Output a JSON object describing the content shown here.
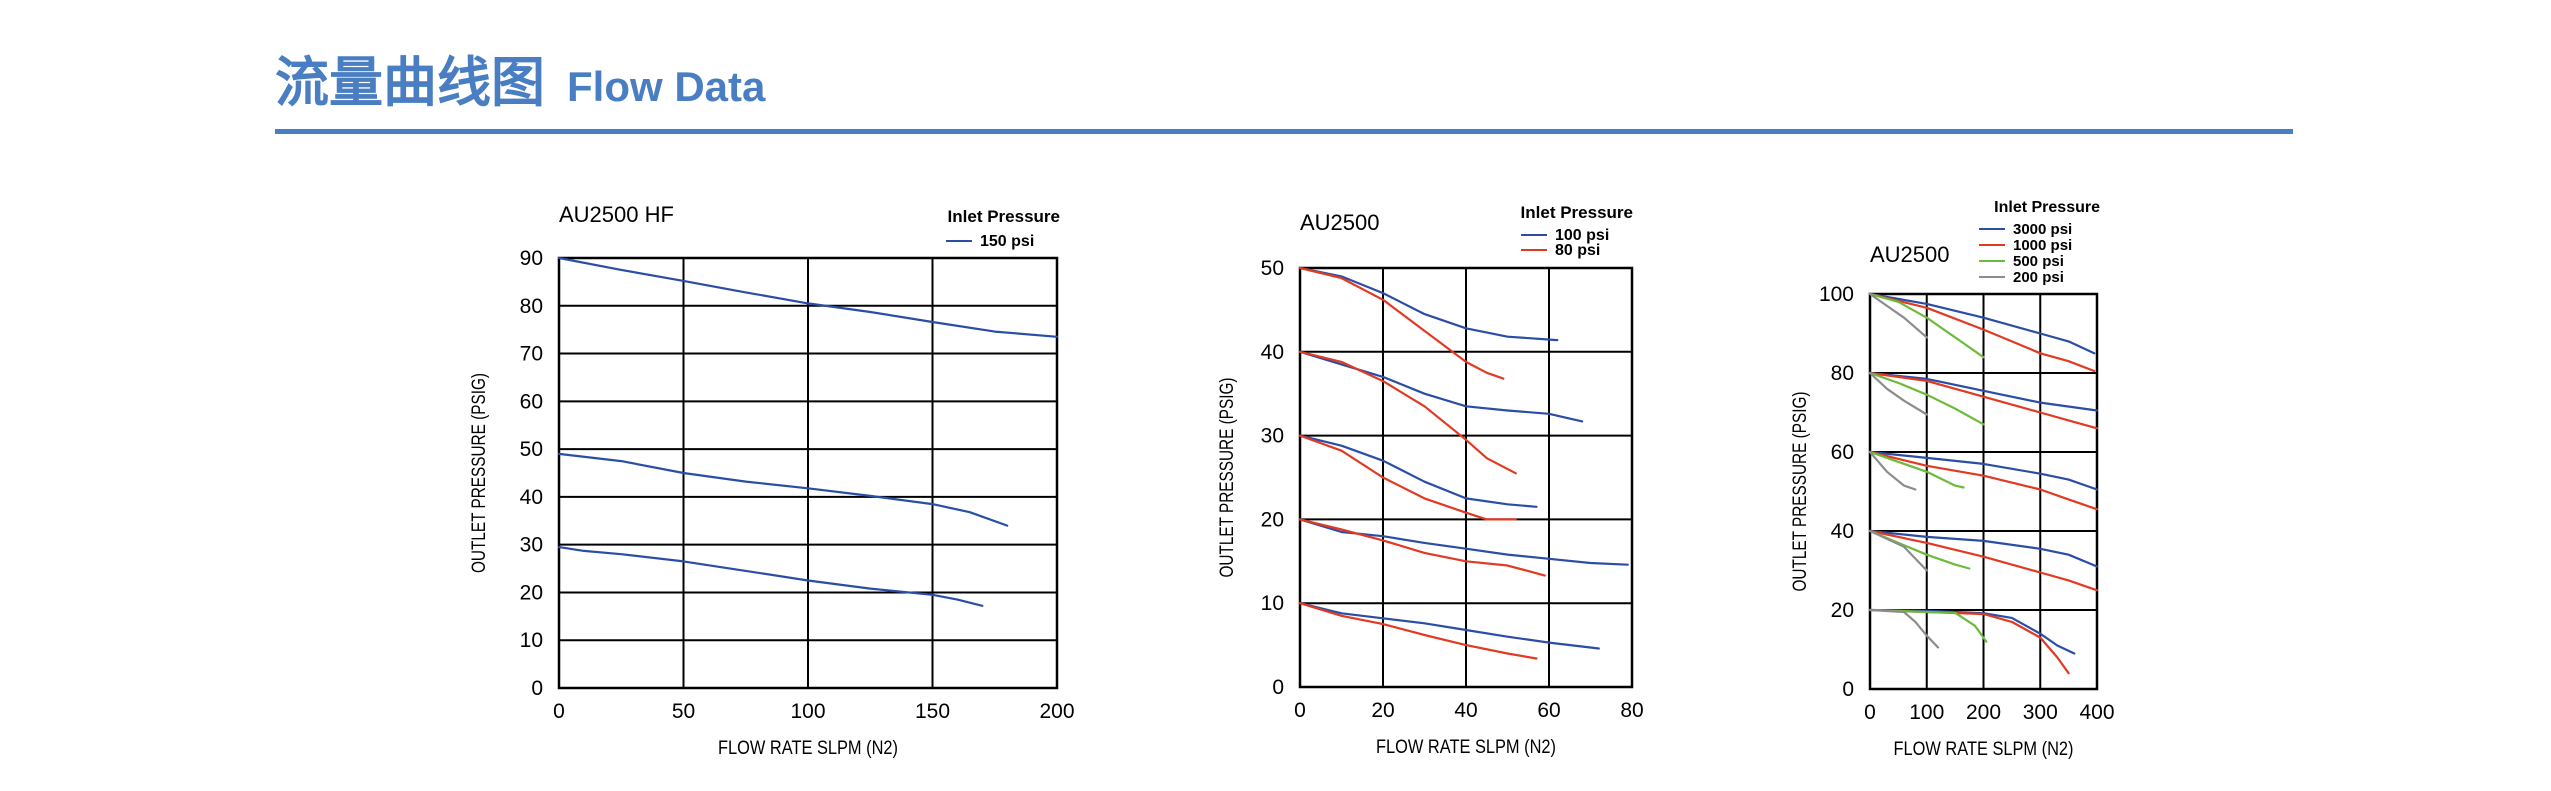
{
  "header": {
    "title_cn": "流量曲线图",
    "title_en": "Flow Data"
  },
  "colors": {
    "accent": "#4a7ec2",
    "blue": "#2a4ea6",
    "red": "#e23a22",
    "green": "#6cbb3c",
    "gray": "#8c8c8c"
  },
  "chart_data": [
    {
      "type": "line",
      "title": "AU2500  HF",
      "xlabel": "FLOW RATE SLPM (N2)",
      "ylabel": "OUTLET PRESSURE (PSIG)",
      "xlim": [
        0,
        200
      ],
      "ylim": [
        0,
        90
      ],
      "xticks": [
        0,
        50,
        100,
        150,
        200
      ],
      "yticks": [
        0,
        10,
        20,
        30,
        40,
        50,
        60,
        70,
        80,
        90
      ],
      "grid": true,
      "legend": {
        "title": "Inlet Pressure",
        "position": "top-right"
      },
      "series": [
        {
          "name": "150  psi",
          "color": "#2a4ea6",
          "curves": [
            [
              [
                0,
                90
              ],
              [
                25,
                87.5
              ],
              [
                50,
                85.2
              ],
              [
                75,
                82.8
              ],
              [
                100,
                80.5
              ],
              [
                125,
                78.7
              ],
              [
                150,
                76.6
              ],
              [
                175,
                74.6
              ],
              [
                200,
                73.5
              ]
            ],
            [
              [
                0,
                49
              ],
              [
                25,
                47.5
              ],
              [
                50,
                45
              ],
              [
                75,
                43.2
              ],
              [
                100,
                41.8
              ],
              [
                125,
                40.2
              ],
              [
                150,
                38.5
              ],
              [
                165,
                36.8
              ],
              [
                180,
                34
              ]
            ],
            [
              [
                0,
                29.5
              ],
              [
                10,
                28.7
              ],
              [
                25,
                28
              ],
              [
                50,
                26.5
              ],
              [
                75,
                24.5
              ],
              [
                100,
                22.5
              ],
              [
                125,
                20.8
              ],
              [
                150,
                19.5
              ],
              [
                160,
                18.5
              ],
              [
                170,
                17.2
              ]
            ]
          ]
        }
      ]
    },
    {
      "type": "line",
      "title": "AU2500",
      "xlabel": "FLOW RATE SLPM (N2)",
      "ylabel": "OUTLET PRESSURE (PSIG)",
      "xlim": [
        0,
        80
      ],
      "ylim": [
        0,
        50
      ],
      "xticks": [
        0,
        20,
        40,
        60,
        80
      ],
      "yticks": [
        0,
        10,
        20,
        30,
        40,
        50
      ],
      "grid": true,
      "legend": {
        "title": "Inlet Pressure",
        "position": "top-right"
      },
      "series": [
        {
          "name": "100  psi",
          "color": "#2a4ea6",
          "curves": [
            [
              [
                0,
                50
              ],
              [
                10,
                49
              ],
              [
                20,
                47
              ],
              [
                30,
                44.5
              ],
              [
                40,
                42.8
              ],
              [
                50,
                41.8
              ],
              [
                62,
                41.4
              ]
            ],
            [
              [
                0,
                40
              ],
              [
                10,
                38.5
              ],
              [
                20,
                37
              ],
              [
                30,
                35
              ],
              [
                40,
                33.5
              ],
              [
                50,
                33
              ],
              [
                60,
                32.6
              ],
              [
                68,
                31.7
              ]
            ],
            [
              [
                0,
                30
              ],
              [
                10,
                28.8
              ],
              [
                20,
                27
              ],
              [
                30,
                24.5
              ],
              [
                40,
                22.5
              ],
              [
                50,
                21.8
              ],
              [
                57,
                21.5
              ]
            ],
            [
              [
                0,
                20
              ],
              [
                10,
                18.5
              ],
              [
                20,
                18
              ],
              [
                30,
                17.2
              ],
              [
                40,
                16.5
              ],
              [
                50,
                15.8
              ],
              [
                60,
                15.3
              ],
              [
                70,
                14.8
              ],
              [
                79,
                14.6
              ]
            ],
            [
              [
                0,
                10
              ],
              [
                10,
                8.8
              ],
              [
                20,
                8.2
              ],
              [
                30,
                7.6
              ],
              [
                40,
                6.8
              ],
              [
                50,
                6
              ],
              [
                60,
                5.3
              ],
              [
                72,
                4.6
              ]
            ]
          ]
        },
        {
          "name": "80  psi",
          "color": "#e23a22",
          "curves": [
            [
              [
                0,
                50
              ],
              [
                10,
                48.8
              ],
              [
                20,
                46.2
              ],
              [
                30,
                42.5
              ],
              [
                40,
                38.8
              ],
              [
                45,
                37.5
              ],
              [
                49,
                36.8
              ]
            ],
            [
              [
                0,
                40
              ],
              [
                10,
                38.8
              ],
              [
                20,
                36.5
              ],
              [
                30,
                33.5
              ],
              [
                40,
                29.5
              ],
              [
                45,
                27.3
              ],
              [
                52,
                25.5
              ]
            ],
            [
              [
                0,
                30
              ],
              [
                10,
                28.2
              ],
              [
                20,
                25
              ],
              [
                30,
                22.5
              ],
              [
                40,
                20.8
              ],
              [
                45,
                20
              ],
              [
                52,
                20
              ]
            ],
            [
              [
                0,
                20
              ],
              [
                10,
                18.8
              ],
              [
                20,
                17.5
              ],
              [
                30,
                16
              ],
              [
                40,
                15
              ],
              [
                50,
                14.5
              ],
              [
                59,
                13.3
              ]
            ],
            [
              [
                0,
                10
              ],
              [
                10,
                8.5
              ],
              [
                20,
                7.5
              ],
              [
                30,
                6.2
              ],
              [
                40,
                5
              ],
              [
                50,
                4
              ],
              [
                57,
                3.4
              ]
            ]
          ]
        }
      ]
    },
    {
      "type": "line",
      "title": "AU2500",
      "xlabel": "FLOW RATE SLPM (N2)",
      "ylabel": "OUTLET PRESSURE (PSIG)",
      "xlim": [
        0,
        400
      ],
      "ylim": [
        0,
        100
      ],
      "xticks": [
        0,
        100,
        200,
        300,
        400
      ],
      "yticks": [
        0,
        20,
        40,
        60,
        80,
        100
      ],
      "grid": true,
      "legend": {
        "title": "Inlet Pressure",
        "position": "top-right"
      },
      "series": [
        {
          "name": "3000  psi",
          "color": "#2a4ea6",
          "curves": [
            [
              [
                0,
                100
              ],
              [
                100,
                97.5
              ],
              [
                200,
                94
              ],
              [
                300,
                90
              ],
              [
                350,
                88
              ],
              [
                395,
                85
              ]
            ],
            [
              [
                0,
                80
              ],
              [
                100,
                78.5
              ],
              [
                200,
                75.5
              ],
              [
                300,
                72.5
              ],
              [
                400,
                70.5
              ]
            ],
            [
              [
                0,
                60
              ],
              [
                100,
                58.5
              ],
              [
                200,
                57
              ],
              [
                300,
                54.5
              ],
              [
                350,
                53
              ],
              [
                400,
                50.5
              ]
            ],
            [
              [
                0,
                40
              ],
              [
                100,
                38.5
              ],
              [
                200,
                37.5
              ],
              [
                300,
                35.5
              ],
              [
                350,
                34
              ],
              [
                400,
                31
              ]
            ],
            [
              [
                0,
                20
              ],
              [
                100,
                19.8
              ],
              [
                200,
                19.2
              ],
              [
                250,
                18
              ],
              [
                300,
                14
              ],
              [
                330,
                11
              ],
              [
                360,
                9
              ]
            ]
          ]
        },
        {
          "name": "1000  psi",
          "color": "#e23a22",
          "curves": [
            [
              [
                0,
                100
              ],
              [
                100,
                96.5
              ],
              [
                200,
                91
              ],
              [
                250,
                88
              ],
              [
                300,
                85
              ],
              [
                350,
                83
              ],
              [
                395,
                80.5
              ]
            ],
            [
              [
                0,
                80
              ],
              [
                100,
                78
              ],
              [
                200,
                74
              ],
              [
                300,
                70
              ],
              [
                350,
                68
              ],
              [
                400,
                66
              ]
            ],
            [
              [
                0,
                60
              ],
              [
                100,
                56.5
              ],
              [
                200,
                54
              ],
              [
                300,
                50.5
              ],
              [
                350,
                48
              ],
              [
                400,
                45.5
              ]
            ],
            [
              [
                0,
                40
              ],
              [
                100,
                37
              ],
              [
                200,
                33.5
              ],
              [
                300,
                29.5
              ],
              [
                350,
                27.5
              ],
              [
                400,
                25
              ]
            ],
            [
              [
                0,
                20
              ],
              [
                100,
                19.5
              ],
              [
                200,
                19
              ],
              [
                250,
                17
              ],
              [
                300,
                13
              ],
              [
                330,
                8
              ],
              [
                350,
                4
              ]
            ]
          ]
        },
        {
          "name": "500  psi",
          "color": "#6cbb3c",
          "curves": [
            [
              [
                0,
                100
              ],
              [
                50,
                98
              ],
              [
                100,
                94
              ],
              [
                150,
                89
              ],
              [
                200,
                84
              ]
            ],
            [
              [
                0,
                80
              ],
              [
                50,
                77.5
              ],
              [
                100,
                74.5
              ],
              [
                150,
                71
              ],
              [
                200,
                67
              ]
            ],
            [
              [
                0,
                60
              ],
              [
                50,
                57.5
              ],
              [
                100,
                55
              ],
              [
                150,
                51.5
              ],
              [
                165,
                51
              ]
            ],
            [
              [
                0,
                40
              ],
              [
                50,
                37
              ],
              [
                100,
                34
              ],
              [
                150,
                31.5
              ],
              [
                175,
                30.5
              ]
            ],
            [
              [
                0,
                20
              ],
              [
                100,
                19.5
              ],
              [
                150,
                19.3
              ],
              [
                185,
                16
              ],
              [
                205,
                12
              ]
            ]
          ]
        },
        {
          "name": "200  psi",
          "color": "#8c8c8c",
          "curves": [
            [
              [
                0,
                100
              ],
              [
                30,
                97
              ],
              [
                60,
                94
              ],
              [
                100,
                89
              ]
            ],
            [
              [
                0,
                80
              ],
              [
                30,
                76
              ],
              [
                60,
                73
              ],
              [
                100,
                69.5
              ]
            ],
            [
              [
                0,
                60
              ],
              [
                30,
                55
              ],
              [
                60,
                51.5
              ],
              [
                80,
                50.5
              ]
            ],
            [
              [
                0,
                40
              ],
              [
                30,
                38
              ],
              [
                60,
                36
              ],
              [
                100,
                30
              ]
            ],
            [
              [
                0,
                20
              ],
              [
                60,
                19.5
              ],
              [
                80,
                17
              ],
              [
                100,
                13.5
              ],
              [
                120,
                10.5
              ]
            ]
          ]
        }
      ]
    }
  ]
}
